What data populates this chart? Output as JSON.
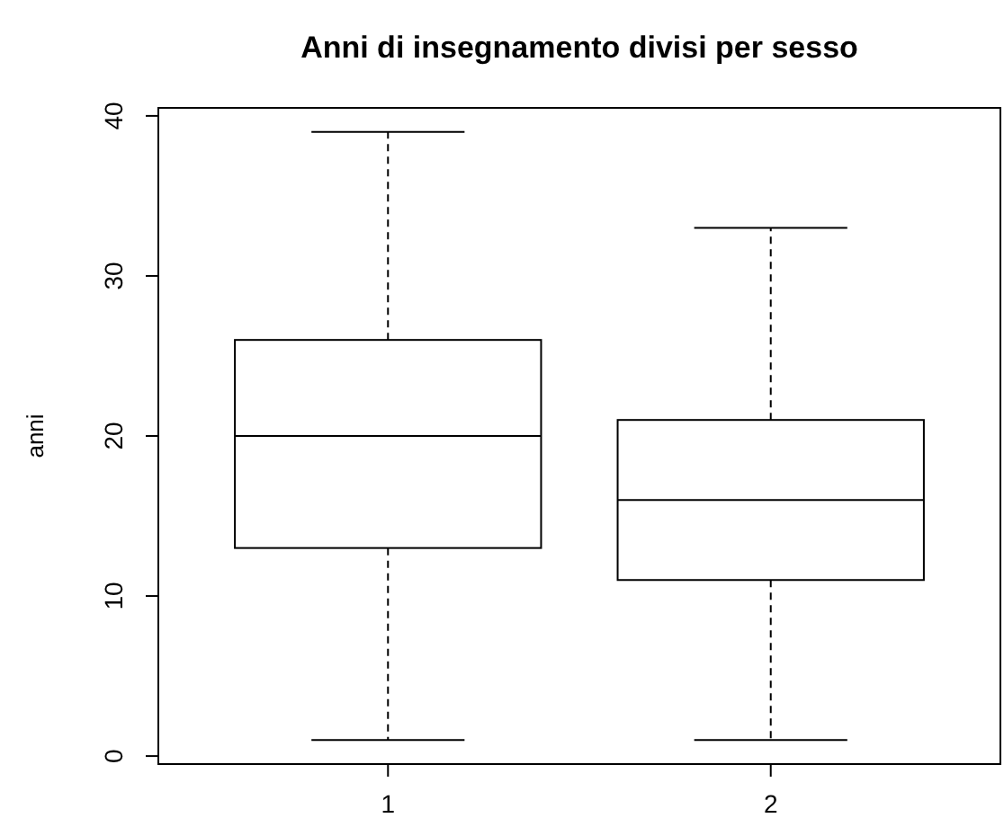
{
  "chart_data": {
    "type": "box",
    "title": "Anni di insegnamento divisi per sesso",
    "ylabel": "anni",
    "categories": [
      "1",
      "2"
    ],
    "boxes": [
      {
        "low": 1,
        "q1": 13,
        "median": 20,
        "q3": 26,
        "high": 39
      },
      {
        "low": 1,
        "q1": 11,
        "median": 16,
        "q3": 21,
        "high": 33
      }
    ],
    "ylim": [
      -0.5,
      40.5
    ],
    "yticks": [
      0,
      10,
      20,
      30,
      40
    ],
    "grid": false,
    "line_style": "dashed"
  }
}
